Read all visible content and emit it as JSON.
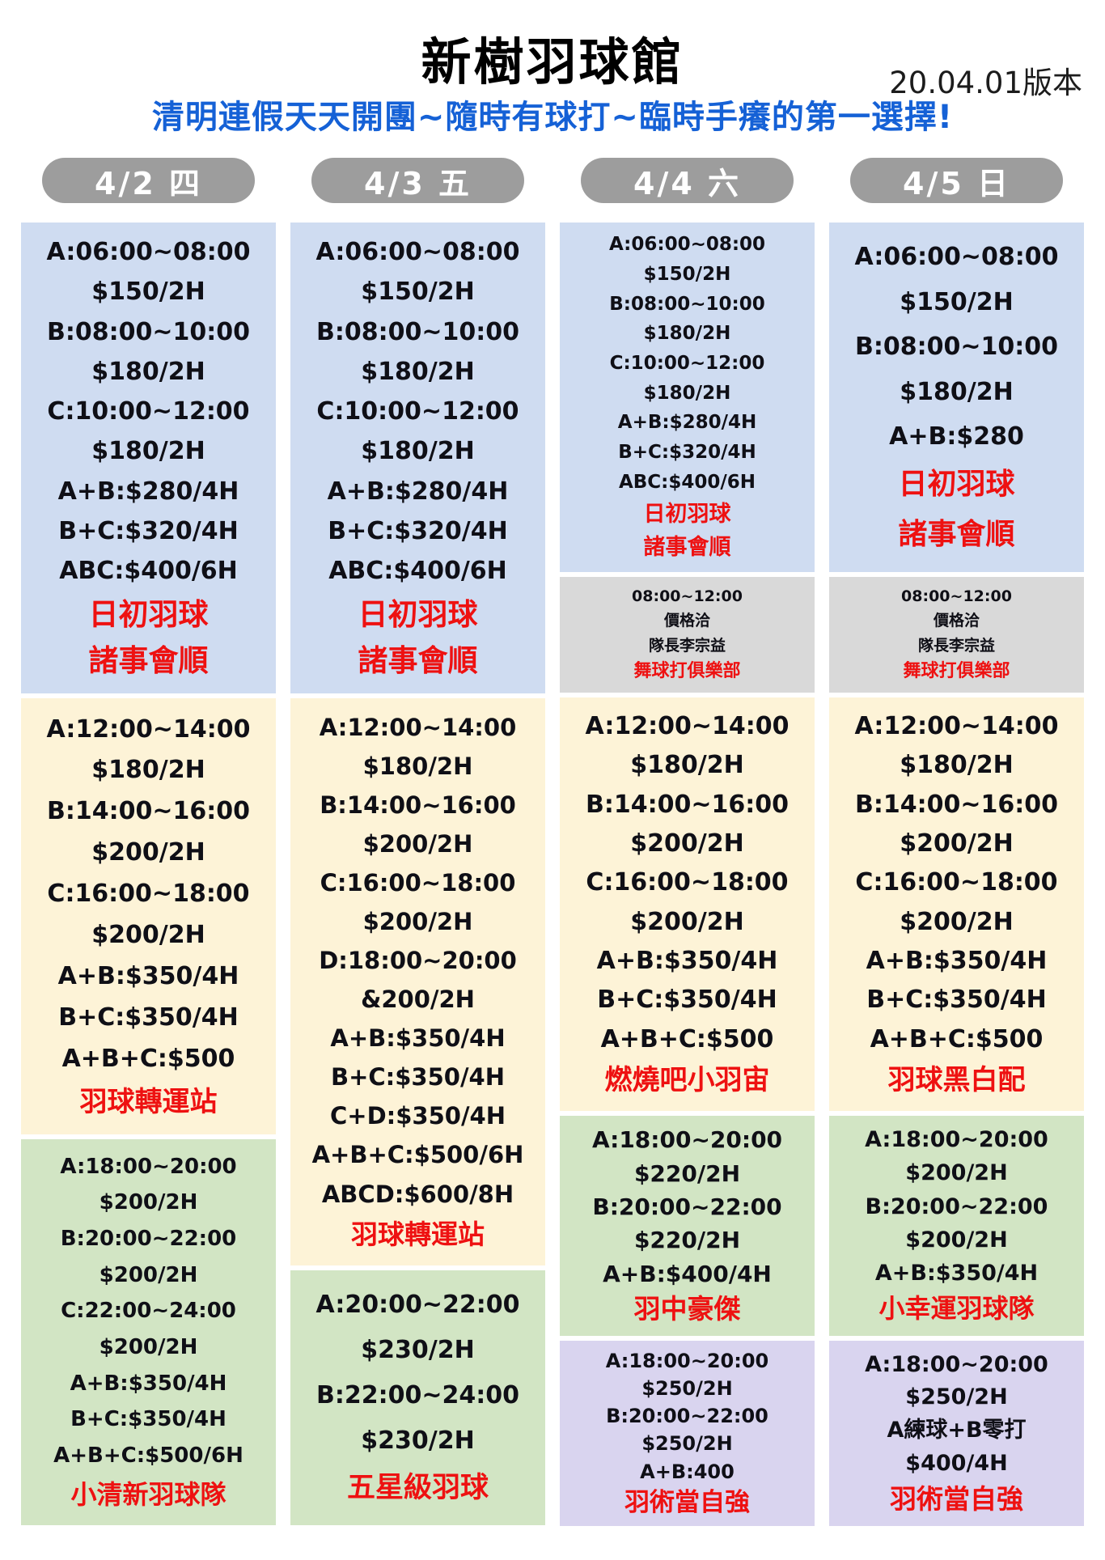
{
  "page": {
    "title": "新樹羽球館",
    "version": "20.04.01版本",
    "subtitle": "清明連假天天開團~隨時有球打~臨時手癢的第一選擇!"
  },
  "colors": {
    "subtitle_blue": "#1561d6",
    "pill_gray": "#9d9d9d",
    "team_red": "#ee1111",
    "block_blue": "#cfdcf1",
    "block_yellow": "#fdf3d7",
    "block_green": "#d2e5c4",
    "block_gray": "#d9d9d9",
    "block_purple": "#d9d4ef"
  },
  "columns": [
    {
      "label": "4/2 四",
      "blocks": [
        {
          "color": "blue",
          "lines": [
            "A:06:00~08:00",
            "$150/2H",
            "B:08:00~10:00",
            "$180/2H",
            "C:10:00~12:00",
            "$180/2H",
            "A+B:$280/4H",
            "B+C:$320/4H",
            "ABC:$400/6H"
          ],
          "team": [
            "日初羽球",
            "諸事會順"
          ]
        },
        {
          "color": "yellow",
          "lines": [
            "A:12:00~14:00",
            "$180/2H",
            "B:14:00~16:00",
            "$200/2H",
            "C:16:00~18:00",
            "$200/2H",
            "A+B:$350/4H",
            "B+C:$350/4H",
            "A+B+C:$500"
          ],
          "team": [
            "羽球轉運站"
          ]
        },
        {
          "color": "green",
          "lines": [
            "A:18:00~20:00",
            "$200/2H",
            "B:20:00~22:00",
            "$200/2H",
            "C:22:00~24:00",
            "$200/2H",
            "A+B:$350/4H",
            "B+C:$350/4H",
            "A+B+C:$500/6H"
          ],
          "team": [
            "小清新羽球隊"
          ]
        }
      ]
    },
    {
      "label": "4/3 五",
      "blocks": [
        {
          "color": "blue",
          "lines": [
            "A:06:00~08:00",
            "$150/2H",
            "B:08:00~10:00",
            "$180/2H",
            "C:10:00~12:00",
            "$180/2H",
            "A+B:$280/4H",
            "B+C:$320/4H",
            "ABC:$400/6H"
          ],
          "team": [
            "日初羽球",
            "諸事會順"
          ]
        },
        {
          "color": "yellow",
          "lines": [
            "A:12:00~14:00",
            "$180/2H",
            "B:14:00~16:00",
            "$200/2H",
            "C:16:00~18:00",
            "$200/2H",
            "D:18:00~20:00",
            "&200/2H",
            "A+B:$350/4H",
            "B+C:$350/4H",
            "C+D:$350/4H",
            "A+B+C:$500/6H",
            "ABCD:$600/8H"
          ],
          "team": [
            "羽球轉運站"
          ]
        },
        {
          "color": "green",
          "lines": [
            "A:20:00~22:00",
            "$230/2H",
            "B:22:00~24:00",
            "$230/2H"
          ],
          "team": [
            "五星級羽球"
          ]
        }
      ]
    },
    {
      "label": "4/4 六",
      "blocks": [
        {
          "color": "blue",
          "lines": [
            "A:06:00~08:00",
            "$150/2H",
            "B:08:00~10:00",
            "$180/2H",
            "C:10:00~12:00",
            "$180/2H",
            "A+B:$280/4H",
            "B+C:$320/4H",
            "ABC:$400/6H"
          ],
          "team": [
            "日初羽球",
            "諸事會順"
          ]
        },
        {
          "color": "gray",
          "lines": [
            "08:00~12:00",
            "價格洽",
            "隊長李宗益"
          ],
          "team": [
            "舞球打俱樂部"
          ]
        },
        {
          "color": "yellow",
          "lines": [
            "A:12:00~14:00",
            "$180/2H",
            "B:14:00~16:00",
            "$200/2H",
            "C:16:00~18:00",
            "$200/2H",
            "A+B:$350/4H",
            "B+C:$350/4H",
            "A+B+C:$500"
          ],
          "team": [
            "燃燒吧小羽宙"
          ]
        },
        {
          "color": "green",
          "lines": [
            "A:18:00~20:00",
            "$220/2H",
            "B:20:00~22:00",
            "$220/2H",
            "A+B:$400/4H"
          ],
          "team": [
            "羽中豪傑"
          ]
        },
        {
          "color": "purple",
          "lines": [
            "A:18:00~20:00",
            "$250/2H",
            "B:20:00~22:00",
            "$250/2H",
            "A+B:400"
          ],
          "team": [
            "羽術當自強"
          ]
        }
      ]
    },
    {
      "label": "4/5 日",
      "blocks": [
        {
          "color": "blue",
          "lines": [
            "A:06:00~08:00",
            "$150/2H",
            "B:08:00~10:00",
            "$180/2H",
            "A+B:$280"
          ],
          "team": [
            "日初羽球",
            "諸事會順"
          ]
        },
        {
          "color": "gray",
          "lines": [
            "08:00~12:00",
            "價格洽",
            "隊長李宗益"
          ],
          "team": [
            "舞球打俱樂部"
          ]
        },
        {
          "color": "yellow",
          "lines": [
            "A:12:00~14:00",
            "$180/2H",
            "B:14:00~16:00",
            "$200/2H",
            "C:16:00~18:00",
            "$200/2H",
            "A+B:$350/4H",
            "B+C:$350/4H",
            "A+B+C:$500"
          ],
          "team": [
            "羽球黑白配"
          ]
        },
        {
          "color": "green",
          "lines": [
            "A:18:00~20:00",
            "$200/2H",
            "B:20:00~22:00",
            "$200/2H",
            "A+B:$350/4H"
          ],
          "team": [
            "小幸運羽球隊"
          ]
        },
        {
          "color": "purple",
          "lines": [
            "A:18:00~20:00",
            "$250/2H",
            "A練球+B零打",
            "$400/4H"
          ],
          "team": [
            "羽術當自強"
          ]
        }
      ]
    }
  ]
}
